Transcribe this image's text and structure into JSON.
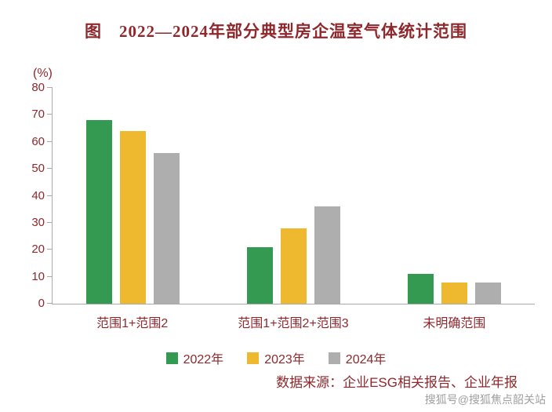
{
  "title": "图　2022—2024年部分典型房企温室气体统计范围",
  "source_note": "数据来源：企业ESG相关报告、企业年报",
  "watermark": "搜狐号@搜狐焦点韶关站",
  "colors": {
    "text": "#8e282c",
    "axis": "#a9a9a9",
    "watermark": "#8f8f8f"
  },
  "chart_data": {
    "type": "bar",
    "title": "图　2022—2024年部分典型房企温室气体统计范围",
    "unit_label": "(%)",
    "xlabel": "",
    "ylabel": "(%)",
    "categories": [
      "范围1+范围2",
      "范围1+范围2+范围3",
      "未明确范围"
    ],
    "series": [
      {
        "name": "2022年",
        "color": "#349a52",
        "values": [
          68,
          21,
          11
        ]
      },
      {
        "name": "2023年",
        "color": "#eeb92f",
        "values": [
          64,
          28,
          8
        ]
      },
      {
        "name": "2024年",
        "color": "#aeaeae",
        "values": [
          56,
          36,
          8
        ]
      }
    ],
    "ylim": [
      0,
      80
    ],
    "yticks": [
      0,
      10,
      20,
      30,
      40,
      50,
      60,
      70,
      80
    ],
    "grid": false,
    "legend_position": "bottom"
  }
}
